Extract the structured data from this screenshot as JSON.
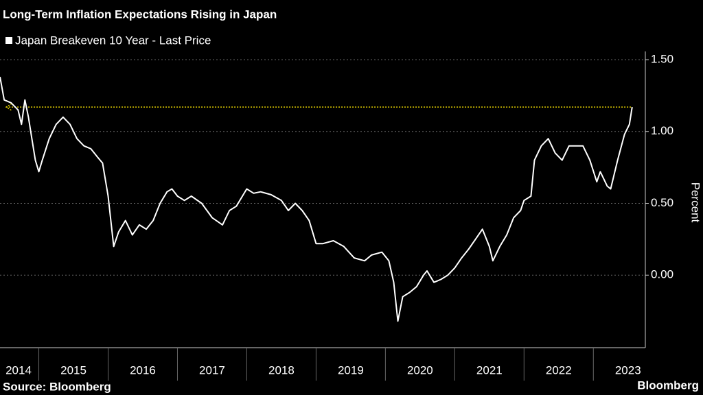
{
  "chart_data": {
    "type": "line",
    "title": "Long-Term Inflation Expectations Rising in Japan",
    "ylabel": "Percent",
    "source": "Source: Bloomberg",
    "brand": "Bloomberg",
    "series": [
      {
        "name": "Japan Breakeven 10 Year - Last Price",
        "color": "#ffffff",
        "x": [
          2014.44,
          2014.5,
          2014.6,
          2014.7,
          2014.75,
          2014.8,
          2014.85,
          2014.9,
          2014.95,
          2015.0,
          2015.05,
          2015.15,
          2015.25,
          2015.35,
          2015.45,
          2015.55,
          2015.65,
          2015.75,
          2015.85,
          2015.92,
          2016.0,
          2016.08,
          2016.15,
          2016.25,
          2016.35,
          2016.45,
          2016.55,
          2016.65,
          2016.75,
          2016.85,
          2016.92,
          2017.0,
          2017.1,
          2017.2,
          2017.35,
          2017.5,
          2017.65,
          2017.75,
          2017.85,
          2018.0,
          2018.1,
          2018.2,
          2018.35,
          2018.5,
          2018.6,
          2018.7,
          2018.8,
          2018.9,
          2019.0,
          2019.1,
          2019.25,
          2019.4,
          2019.55,
          2019.7,
          2019.8,
          2019.95,
          2020.05,
          2020.12,
          2020.18,
          2020.25,
          2020.35,
          2020.45,
          2020.55,
          2020.6,
          2020.7,
          2020.8,
          2020.9,
          2021.0,
          2021.1,
          2021.2,
          2021.3,
          2021.4,
          2021.5,
          2021.55,
          2021.65,
          2021.75,
          2021.85,
          2021.95,
          2022.0,
          2022.1,
          2022.15,
          2022.25,
          2022.35,
          2022.45,
          2022.55,
          2022.65,
          2022.75,
          2022.85,
          2022.95,
          2023.05,
          2023.1,
          2023.2,
          2023.25,
          2023.35,
          2023.45,
          2023.52,
          2023.56
        ],
        "values": [
          1.38,
          1.22,
          1.2,
          1.15,
          1.05,
          1.22,
          1.1,
          0.95,
          0.8,
          0.72,
          0.8,
          0.95,
          1.05,
          1.1,
          1.05,
          0.95,
          0.9,
          0.88,
          0.82,
          0.78,
          0.55,
          0.2,
          0.3,
          0.38,
          0.28,
          0.35,
          0.32,
          0.38,
          0.5,
          0.58,
          0.6,
          0.55,
          0.52,
          0.55,
          0.5,
          0.4,
          0.35,
          0.45,
          0.48,
          0.6,
          0.57,
          0.58,
          0.56,
          0.52,
          0.45,
          0.5,
          0.45,
          0.38,
          0.22,
          0.22,
          0.24,
          0.2,
          0.12,
          0.1,
          0.14,
          0.16,
          0.1,
          -0.05,
          -0.32,
          -0.15,
          -0.12,
          -0.08,
          0.0,
          0.03,
          -0.05,
          -0.03,
          0.0,
          0.05,
          0.12,
          0.18,
          0.25,
          0.32,
          0.2,
          0.1,
          0.2,
          0.28,
          0.4,
          0.45,
          0.52,
          0.55,
          0.8,
          0.9,
          0.95,
          0.85,
          0.8,
          0.9,
          0.9,
          0.9,
          0.8,
          0.65,
          0.72,
          0.62,
          0.6,
          0.8,
          0.98,
          1.05,
          1.17
        ]
      }
    ],
    "reference_line": {
      "value": 1.17,
      "from": 2014.53,
      "to": 2023.56,
      "color": "#e6d200"
    },
    "xlim": [
      2014.44,
      2023.75
    ],
    "xticks": [
      {
        "value": 2014.5,
        "label": "2014"
      },
      {
        "value": 2015.5,
        "label": "2015"
      },
      {
        "value": 2016.5,
        "label": "2016"
      },
      {
        "value": 2017.5,
        "label": "2017"
      },
      {
        "value": 2018.5,
        "label": "2018"
      },
      {
        "value": 2019.5,
        "label": "2019"
      },
      {
        "value": 2020.5,
        "label": "2020"
      },
      {
        "value": 2021.5,
        "label": "2021"
      },
      {
        "value": 2022.5,
        "label": "2022"
      },
      {
        "value": 2023.5,
        "label": "2023"
      }
    ],
    "ylim": [
      -0.5,
      1.5
    ],
    "yticks": [
      {
        "value": 0,
        "label": "0.00"
      },
      {
        "value": 0.5,
        "label": "0.50"
      },
      {
        "value": 1,
        "label": "1.00"
      },
      {
        "value": 1.5,
        "label": "1.50"
      }
    ],
    "grid": true
  }
}
